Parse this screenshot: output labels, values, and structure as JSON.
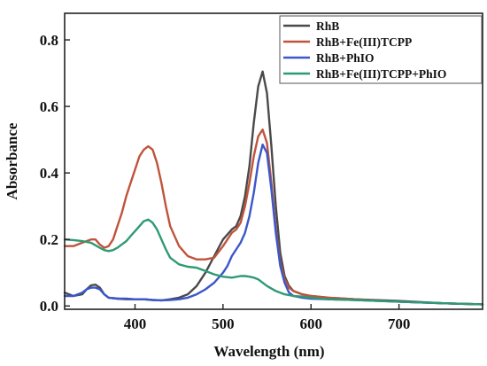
{
  "chart_data": {
    "type": "line",
    "xlabel": "Wavelength (nm)",
    "ylabel": "Absorbance",
    "xlim": [
      320,
      795
    ],
    "ylim": [
      -0.01,
      0.88
    ],
    "x_ticks": [
      400,
      500,
      600,
      700
    ],
    "y_ticks": [
      0.0,
      0.2,
      0.4,
      0.6,
      0.8
    ],
    "x_tick_labels": [
      "400",
      "500",
      "600",
      "700"
    ],
    "y_tick_labels": [
      "0.0",
      "0.2",
      "0.4",
      "0.6",
      "0.8"
    ],
    "grid": false,
    "legend_position": "top-right",
    "legend_title": "",
    "series": [
      {
        "name": "RhB",
        "color": "#4a4a4a",
        "x": [
          320,
          330,
          340,
          345,
          350,
          355,
          360,
          365,
          370,
          380,
          390,
          400,
          410,
          420,
          430,
          440,
          450,
          460,
          470,
          480,
          490,
          500,
          510,
          515,
          520,
          525,
          530,
          535,
          540,
          545,
          550,
          555,
          560,
          565,
          570,
          575,
          580,
          590,
          600,
          620,
          650,
          700,
          750,
          795
        ],
        "y": [
          0.04,
          0.03,
          0.035,
          0.05,
          0.062,
          0.064,
          0.055,
          0.035,
          0.025,
          0.022,
          0.02,
          0.02,
          0.02,
          0.018,
          0.017,
          0.02,
          0.025,
          0.035,
          0.06,
          0.1,
          0.15,
          0.2,
          0.23,
          0.24,
          0.27,
          0.33,
          0.42,
          0.55,
          0.66,
          0.705,
          0.64,
          0.48,
          0.3,
          0.16,
          0.09,
          0.06,
          0.045,
          0.035,
          0.03,
          0.025,
          0.02,
          0.015,
          0.008,
          0.005
        ]
      },
      {
        "name": "RhB+Fe(III)TCPP",
        "color": "#c0533b",
        "x": [
          320,
          330,
          340,
          350,
          355,
          360,
          365,
          370,
          375,
          380,
          385,
          390,
          395,
          400,
          405,
          410,
          415,
          420,
          425,
          430,
          435,
          440,
          450,
          460,
          470,
          480,
          490,
          500,
          510,
          515,
          520,
          525,
          530,
          535,
          540,
          545,
          550,
          555,
          560,
          565,
          570,
          575,
          580,
          590,
          600,
          620,
          650,
          700,
          750,
          795
        ],
        "y": [
          0.18,
          0.18,
          0.19,
          0.2,
          0.2,
          0.185,
          0.175,
          0.18,
          0.2,
          0.24,
          0.28,
          0.33,
          0.37,
          0.41,
          0.45,
          0.47,
          0.48,
          0.47,
          0.43,
          0.37,
          0.3,
          0.24,
          0.18,
          0.15,
          0.14,
          0.14,
          0.145,
          0.18,
          0.22,
          0.23,
          0.25,
          0.3,
          0.37,
          0.45,
          0.51,
          0.53,
          0.49,
          0.37,
          0.23,
          0.13,
          0.08,
          0.055,
          0.045,
          0.035,
          0.03,
          0.025,
          0.02,
          0.013,
          0.008,
          0.005
        ]
      },
      {
        "name": "RhB+PhIO",
        "color": "#3b57c9",
        "x": [
          320,
          330,
          340,
          345,
          350,
          355,
          360,
          365,
          370,
          380,
          390,
          400,
          410,
          420,
          430,
          440,
          450,
          460,
          470,
          480,
          490,
          500,
          505,
          510,
          515,
          520,
          525,
          530,
          535,
          540,
          545,
          550,
          555,
          560,
          565,
          570,
          575,
          580,
          590,
          600,
          620,
          650,
          700,
          750,
          795
        ],
        "y": [
          0.03,
          0.03,
          0.04,
          0.05,
          0.055,
          0.055,
          0.05,
          0.035,
          0.025,
          0.022,
          0.022,
          0.02,
          0.02,
          0.018,
          0.017,
          0.018,
          0.02,
          0.025,
          0.035,
          0.05,
          0.07,
          0.1,
          0.12,
          0.15,
          0.17,
          0.19,
          0.22,
          0.27,
          0.34,
          0.43,
          0.485,
          0.46,
          0.35,
          0.22,
          0.12,
          0.07,
          0.04,
          0.03,
          0.025,
          0.022,
          0.02,
          0.018,
          0.013,
          0.008,
          0.005
        ]
      },
      {
        "name": "RhB+Fe(III)TCPP+PhIO",
        "color": "#2e9a74",
        "x": [
          320,
          330,
          340,
          350,
          360,
          365,
          370,
          375,
          380,
          385,
          390,
          395,
          400,
          405,
          410,
          415,
          420,
          425,
          430,
          435,
          440,
          450,
          460,
          470,
          480,
          490,
          500,
          510,
          520,
          525,
          530,
          535,
          540,
          550,
          560,
          570,
          580,
          590,
          600,
          620,
          650,
          700,
          750,
          795
        ],
        "y": [
          0.2,
          0.198,
          0.195,
          0.19,
          0.175,
          0.168,
          0.165,
          0.168,
          0.175,
          0.185,
          0.195,
          0.21,
          0.225,
          0.24,
          0.255,
          0.26,
          0.25,
          0.23,
          0.2,
          0.17,
          0.145,
          0.125,
          0.118,
          0.115,
          0.105,
          0.095,
          0.088,
          0.085,
          0.09,
          0.09,
          0.088,
          0.085,
          0.08,
          0.06,
          0.045,
          0.035,
          0.03,
          0.028,
          0.025,
          0.02,
          0.018,
          0.013,
          0.008,
          0.005
        ]
      }
    ]
  }
}
